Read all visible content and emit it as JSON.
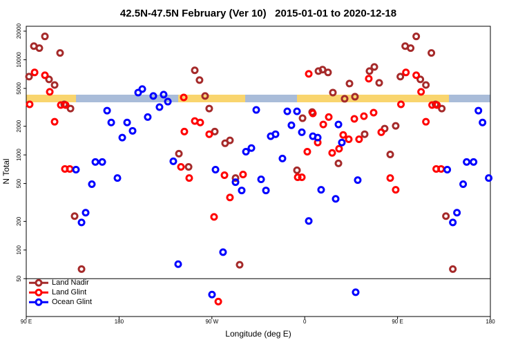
{
  "chart_data": {
    "type": "scatter",
    "title": "42.5N-47.5N February (Ver 10)   2015-01-01 to 2020-12-18",
    "xlabel": "Longitude (deg E)",
    "ylabel": "N Total",
    "log_y": true,
    "legend": "lower left",
    "xlim": [
      90,
      540
    ],
    "ylim": [
      20,
      22500
    ],
    "xticks": [
      {
        "value": 90,
        "label": "90 E"
      },
      180,
      {
        "value": 270,
        "label": "90 W"
      },
      {
        "value": 360,
        "label": "0"
      },
      {
        "value": 450,
        "label": "90 E"
      },
      {
        "value": 540,
        "label": "180"
      }
    ],
    "yticks": [
      50,
      100,
      200,
      500,
      1000,
      2000,
      5000,
      10000,
      20000
    ],
    "series": [
      {
        "name": "Land Nadir",
        "color": "#a52a2a",
        "x": [
          92.7,
          97.4,
          102.7,
          108.1,
          112.1,
          117.5,
          122.8,
          126.8,
          132.9,
          136.9,
          143.6,
          238,
          247.4,
          253.4,
          258,
          263.4,
          267.4,
          272.8,
          282.8,
          287.5,
          292.9,
          296.9,
          352.5,
          357.9,
          367.2,
          373.3,
          377.3,
          382.6,
          387.3,
          392.7,
          398.7,
          403.4,
          408.7,
          418.1,
          422.8,
          427.5,
          432.2,
          437.5,
          442.9,
          448.2,
          452.7,
          457.4,
          462.7,
          468.1,
          472.1,
          477.5,
          482.8,
          486.8,
          492.9,
          496.9,
          503.6
        ],
        "values": [
          6650,
          13900,
          13250,
          17600,
          6220,
          5430,
          11800,
          3400,
          3070,
          227,
          63,
          1030,
          748,
          7740,
          6120,
          4160,
          3070,
          1760,
          1325,
          1420,
          571,
          70,
          689,
          2430,
          2820,
          7600,
          7870,
          7360,
          4520,
          815,
          3890,
          5620,
          4090,
          1650,
          7600,
          8410,
          5720,
          1890,
          1010,
          2020,
          6650,
          13900,
          13250,
          17600,
          6220,
          5430,
          11800,
          3400,
          3070,
          227,
          63
        ]
      },
      {
        "name": "Land Glint",
        "color": "#ff0000",
        "x": [
          93.3,
          98.1,
          108.1,
          112.8,
          117.5,
          123.5,
          128.2,
          127.5,
          132.2,
          240,
          242.7,
          243.3,
          248,
          253.4,
          258.7,
          267.4,
          272.1,
          276.2,
          282.2,
          287.5,
          300.2,
          353.2,
          357.2,
          362.5,
          363.9,
          367.9,
          372.6,
          378,
          383.3,
          386.6,
          393.3,
          397.3,
          402.7,
          408.1,
          412.7,
          417.4,
          422.1,
          426.8,
          434.2,
          442.9,
          448.2,
          453.3,
          458.1,
          468.1,
          472.8,
          477.5,
          483.5,
          488.2,
          487.5,
          492.2
        ],
        "values": [
          3400,
          7360,
          6880,
          4600,
          2230,
          3340,
          3340,
          712,
          712,
          748,
          4020,
          1760,
          571,
          2270,
          2190,
          1650,
          223,
          28.7,
          612,
          357,
          622,
          582,
          582,
          1080,
          7110,
          2730,
          1350,
          2090,
          2500,
          1050,
          1160,
          1620,
          1460,
          2390,
          1460,
          2550,
          6330,
          2780,
          1730,
          571,
          430,
          3400,
          7360,
          6880,
          4600,
          2230,
          3340,
          3340,
          712,
          712
        ]
      },
      {
        "name": "Ocean Glint",
        "color": "#0000ff",
        "x": [
          138.2,
          143.6,
          147.6,
          153.6,
          157,
          163.7,
          168.4,
          172.4,
          178.4,
          183.1,
          187.8,
          193.1,
          198.5,
          202.5,
          207.8,
          213.2,
          219.2,
          223.2,
          227.3,
          232.6,
          237.3,
          270.1,
          273.5,
          280.8,
          292.9,
          298.9,
          303,
          308.3,
          313,
          317.7,
          322.4,
          327,
          331.7,
          338.4,
          343.1,
          347.1,
          352.5,
          357.2,
          363.9,
          367.9,
          372.6,
          375.9,
          390,
          392.7,
          396,
          409.4,
          411.4,
          498.2,
          503.6,
          507.6,
          513.6,
          517,
          523.7,
          528.4,
          532.4,
          538.4
        ],
        "values": [
          700,
          195,
          247,
          492,
          842,
          842,
          2920,
          2190,
          571,
          1520,
          2190,
          1790,
          4520,
          4920,
          2500,
          4160,
          3180,
          4300,
          3630,
          857,
          71,
          34,
          700,
          95,
          517,
          423,
          1080,
          1180,
          2970,
          553,
          423,
          1570,
          1650,
          916,
          2870,
          2050,
          2870,
          1730,
          202,
          1570,
          1520,
          430,
          345,
          2090,
          1350,
          36,
          543,
          700,
          195,
          247,
          492,
          842,
          842,
          2920,
          2190,
          571
        ]
      }
    ]
  }
}
